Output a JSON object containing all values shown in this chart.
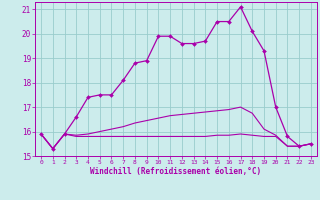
{
  "xlabel": "Windchill (Refroidissement éolien,°C)",
  "xlim": [
    -0.5,
    23.5
  ],
  "ylim": [
    15,
    21.3
  ],
  "yticks": [
    15,
    16,
    17,
    18,
    19,
    20,
    21
  ],
  "xticks": [
    0,
    1,
    2,
    3,
    4,
    5,
    6,
    7,
    8,
    9,
    10,
    11,
    12,
    13,
    14,
    15,
    16,
    17,
    18,
    19,
    20,
    21,
    22,
    23
  ],
  "background_color": "#ccecec",
  "grid_color": "#99cccc",
  "line_color": "#aa00aa",
  "series1_x": [
    0,
    1,
    2,
    3,
    4,
    5,
    6,
    7,
    8,
    9,
    10,
    11,
    12,
    13,
    14,
    15,
    16,
    17,
    18,
    19,
    20,
    21,
    22,
    23
  ],
  "series1_y": [
    15.9,
    15.3,
    15.9,
    16.6,
    17.4,
    17.5,
    17.5,
    18.1,
    18.8,
    18.9,
    19.9,
    19.9,
    19.6,
    19.6,
    19.7,
    20.5,
    20.5,
    21.1,
    20.1,
    19.3,
    17.0,
    15.8,
    15.4,
    15.5
  ],
  "series2_x": [
    0,
    1,
    2,
    3,
    4,
    5,
    6,
    7,
    8,
    9,
    10,
    11,
    12,
    13,
    14,
    15,
    16,
    17,
    18,
    19,
    20,
    21,
    22,
    23
  ],
  "series2_y": [
    15.9,
    15.3,
    15.9,
    15.85,
    15.9,
    16.0,
    16.1,
    16.2,
    16.35,
    16.45,
    16.55,
    16.65,
    16.7,
    16.75,
    16.8,
    16.85,
    16.9,
    17.0,
    16.75,
    16.1,
    15.85,
    15.4,
    15.4,
    15.5
  ],
  "series3_x": [
    0,
    1,
    2,
    3,
    4,
    5,
    6,
    7,
    8,
    9,
    10,
    11,
    12,
    13,
    14,
    15,
    16,
    17,
    18,
    19,
    20,
    21,
    22,
    23
  ],
  "series3_y": [
    15.9,
    15.3,
    15.9,
    15.8,
    15.8,
    15.8,
    15.8,
    15.8,
    15.8,
    15.8,
    15.8,
    15.8,
    15.8,
    15.8,
    15.8,
    15.85,
    15.85,
    15.9,
    15.85,
    15.8,
    15.8,
    15.4,
    15.4,
    15.5
  ]
}
